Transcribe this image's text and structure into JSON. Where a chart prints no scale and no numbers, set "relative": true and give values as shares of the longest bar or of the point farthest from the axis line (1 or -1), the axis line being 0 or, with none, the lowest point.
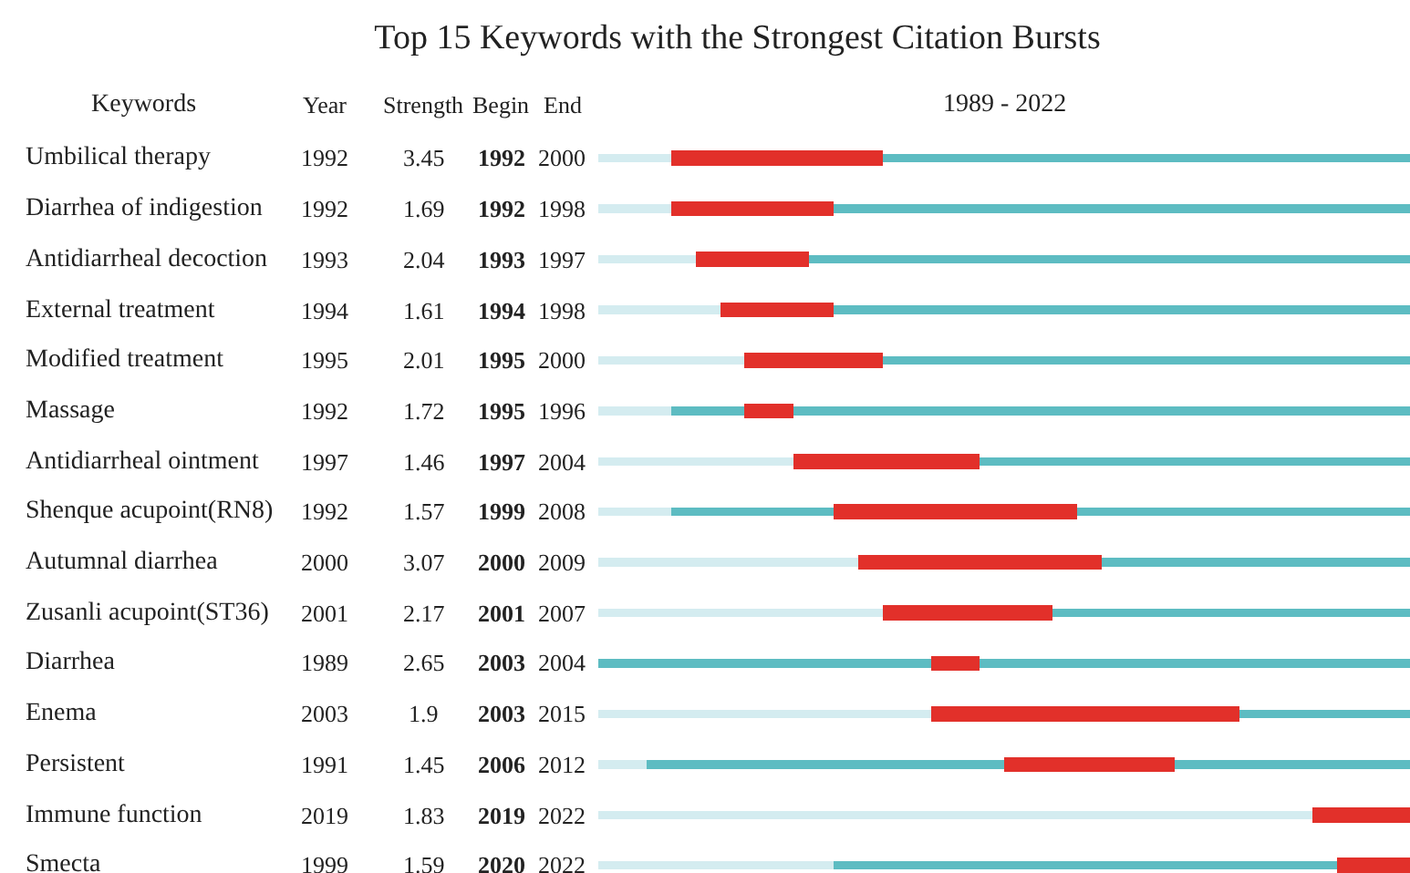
{
  "chart_data": {
    "type": "bar",
    "orientation": "horizontal",
    "stacked": true,
    "relative": true,
    "title": "Top 15 Keywords with the Strongest Citation Bursts",
    "subtitle": "1989 - 2022",
    "ylabel": "Keywords",
    "tick_labels": "y",
    "categories": [
      "Umbilical therapy",
      "Diarrhea of indigestion",
      "Antidiarrheal decoction",
      "External treatment",
      "Modified treatment",
      "Massage",
      "Antidiarrheal ointment",
      "Shenque acupoint(RN8)",
      "Autumnal diarrhea",
      "Zusanli acupoint(ST36)",
      "Diarrhea",
      "Enema",
      "Persistent",
      "Immune function",
      "Smecta"
    ],
    "series": [
      {
        "color": "#d4ecf0",
        "values": [
          0.09,
          0.09,
          0.12,
          0.15,
          0.18,
          0.09,
          0.24,
          0.09,
          0.32,
          0.35,
          null,
          0.41,
          0.06,
          0.88,
          0.29
        ]
      },
      {
        "color": "#5dbcc2",
        "values": [
          null,
          null,
          null,
          null,
          null,
          0.09,
          null,
          0.2,
          null,
          null,
          0.41,
          null,
          0.44,
          null,
          0.62
        ]
      },
      {
        "color": "#e2302a",
        "values": [
          0.26,
          0.2,
          0.14,
          0.14,
          0.17,
          0.06,
          0.23,
          0.3,
          0.3,
          0.21,
          0.06,
          0.38,
          0.21,
          0.12,
          0.09
        ]
      },
      {
        "color": "#5dbcc2",
        "values": [
          0.65,
          0.71,
          0.74,
          0.71,
          0.65,
          0.76,
          0.53,
          0.41,
          0.38,
          0.44,
          0.53,
          0.21,
          0.29,
          null,
          null
        ]
      }
    ],
    "annotations": [
      "Year",
      "Strength",
      "Begin",
      "End",
      "1992",
      "3.45",
      "1992",
      "2000",
      "1992",
      "1.69",
      "1992",
      "1998",
      "1993",
      "2.04",
      "1993",
      "1997",
      "1994",
      "1.61",
      "1994",
      "1998",
      "1995",
      "2.01",
      "1995",
      "2000",
      "1992",
      "1.72",
      "1995",
      "1996",
      "1997",
      "1.46",
      "1997",
      "2004",
      "1992",
      "1.57",
      "1999",
      "2008",
      "2000",
      "3.07",
      "2000",
      "2009",
      "2001",
      "2.17",
      "2001",
      "2007",
      "1989",
      "2.65",
      "2003",
      "2004",
      "2003",
      "1.9",
      "2003",
      "2015",
      "1991",
      "1.45",
      "2006",
      "2012",
      "2019",
      "1.83",
      "2019",
      "2022",
      "1999",
      "1.59",
      "2020",
      "2022"
    ]
  }
}
